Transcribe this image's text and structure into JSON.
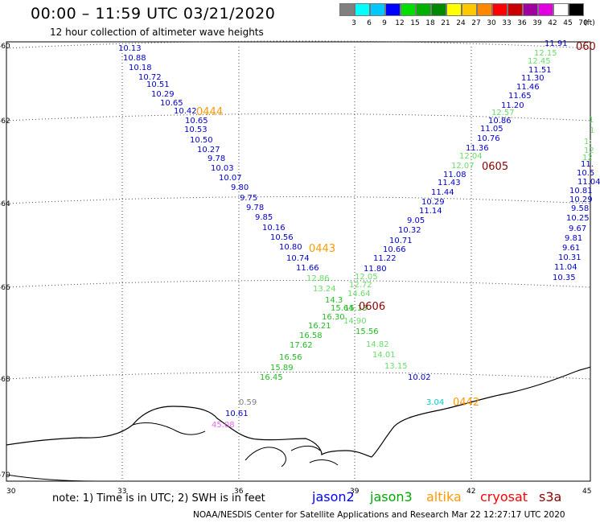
{
  "title": "00:00 – 11:59 UTC 03/21/2020",
  "subtitle": "12 hour collection of altimeter wave heights",
  "scale": {
    "unit_label": "(ft)",
    "colors": [
      "#808080",
      "#00ffff",
      "#00c8ff",
      "#0000ff",
      "#00e000",
      "#00b000",
      "#008800",
      "#ffff00",
      "#ffc800",
      "#ff8800",
      "#ff0000",
      "#c80000",
      "#a000a0",
      "#e000e0",
      "#ffffff",
      "#000000"
    ],
    "labels": [
      "3",
      "6",
      "9",
      "12",
      "15",
      "18",
      "21",
      "24",
      "27",
      "30",
      "33",
      "36",
      "39",
      "42",
      "45",
      "70"
    ]
  },
  "map": {
    "lon_ticks": [
      "30",
      "33",
      "36",
      "39",
      "42",
      "45"
    ],
    "lat_ticks": [
      "-60",
      "-62",
      "-64",
      "-66",
      "-68",
      "-70"
    ]
  },
  "pass_labels": [
    {
      "text": "0444",
      "color": "#ff9900"
    },
    {
      "text": "0443",
      "color": "#ff9900"
    },
    {
      "text": "0442",
      "color": "#ff9900"
    },
    {
      "text": "0605",
      "color": "#8b0000"
    },
    {
      "text": "0606",
      "color": "#8b0000"
    },
    {
      "text": "060",
      "color": "#8b0000"
    }
  ],
  "observations": [
    {
      "v": "10.13",
      "c": "#0000cc"
    },
    {
      "v": "10.88",
      "c": "#0000cc"
    },
    {
      "v": "10.18",
      "c": "#0000cc"
    },
    {
      "v": "10.72",
      "c": "#0000cc"
    },
    {
      "v": "10.51",
      "c": "#0000cc"
    },
    {
      "v": "10.29",
      "c": "#0000cc"
    },
    {
      "v": "10.65",
      "c": "#0000cc"
    },
    {
      "v": "10.42",
      "c": "#0000cc"
    },
    {
      "v": "10.65",
      "c": "#0000cc"
    },
    {
      "v": "10.53",
      "c": "#0000cc"
    },
    {
      "v": "10.50",
      "c": "#0000cc"
    },
    {
      "v": "10.27",
      "c": "#0000cc"
    },
    {
      "v": "9.78",
      "c": "#0000cc"
    },
    {
      "v": "10.03",
      "c": "#0000cc"
    },
    {
      "v": "10.07",
      "c": "#0000cc"
    },
    {
      "v": "9.80",
      "c": "#0000cc"
    },
    {
      "v": "9.75",
      "c": "#0000cc"
    },
    {
      "v": "9.78",
      "c": "#0000cc"
    },
    {
      "v": "9.85",
      "c": "#0000cc"
    },
    {
      "v": "10.16",
      "c": "#0000cc"
    },
    {
      "v": "10.56",
      "c": "#0000cc"
    },
    {
      "v": "10.80",
      "c": "#0000cc"
    },
    {
      "v": "10.74",
      "c": "#0000cc"
    },
    {
      "v": "11.66",
      "c": "#0000cc"
    },
    {
      "v": "12.86",
      "c": "#66dd66"
    },
    {
      "v": "13.24",
      "c": "#66dd66"
    },
    {
      "v": "14.3",
      "c": "#22bb22"
    },
    {
      "v": "15.64",
      "c": "#22bb22"
    },
    {
      "v": "16.30",
      "c": "#22bb22"
    },
    {
      "v": "16.21",
      "c": "#22bb22"
    },
    {
      "v": "16.58",
      "c": "#22bb22"
    },
    {
      "v": "17.62",
      "c": "#22bb22"
    },
    {
      "v": "16.56",
      "c": "#22bb22"
    },
    {
      "v": "15.89",
      "c": "#22bb22"
    },
    {
      "v": "16.45",
      "c": "#22bb22"
    },
    {
      "v": "11.91",
      "c": "#0000cc"
    },
    {
      "v": "12.15",
      "c": "#66dd66"
    },
    {
      "v": "12.45",
      "c": "#66dd66"
    },
    {
      "v": "11.51",
      "c": "#0000cc"
    },
    {
      "v": "11.30",
      "c": "#0000cc"
    },
    {
      "v": "11.46",
      "c": "#0000cc"
    },
    {
      "v": "11.65",
      "c": "#0000cc"
    },
    {
      "v": "11.20",
      "c": "#0000cc"
    },
    {
      "v": "10.86",
      "c": "#0000cc"
    },
    {
      "v": "11.05",
      "c": "#0000cc"
    },
    {
      "v": "10.76",
      "c": "#0000cc"
    },
    {
      "v": "11.36",
      "c": "#0000cc"
    },
    {
      "v": "12.57",
      "c": "#66dd66"
    },
    {
      "v": "12.04",
      "c": "#66dd66"
    },
    {
      "v": "12.07",
      "c": "#66dd66"
    },
    {
      "v": "11.08",
      "c": "#0000cc"
    },
    {
      "v": "11.43",
      "c": "#0000cc"
    },
    {
      "v": "11.44",
      "c": "#0000cc"
    },
    {
      "v": "10.29",
      "c": "#0000cc"
    },
    {
      "v": "11.14",
      "c": "#0000cc"
    },
    {
      "v": "9.05",
      "c": "#0000cc"
    },
    {
      "v": "10.32",
      "c": "#0000cc"
    },
    {
      "v": "10.71",
      "c": "#0000cc"
    },
    {
      "v": "10.66",
      "c": "#0000cc"
    },
    {
      "v": "11.22",
      "c": "#0000cc"
    },
    {
      "v": "11.80",
      "c": "#0000cc"
    },
    {
      "v": "12.05",
      "c": "#66dd66"
    },
    {
      "v": "12.72",
      "c": "#66dd66"
    },
    {
      "v": "14.64",
      "c": "#66dd66"
    },
    {
      "v": "15.13",
      "c": "#22bb22"
    },
    {
      "v": "14.90",
      "c": "#66dd66"
    },
    {
      "v": "15.56",
      "c": "#22bb22"
    },
    {
      "v": "14.82",
      "c": "#66dd66"
    },
    {
      "v": "14.01",
      "c": "#66dd66"
    },
    {
      "v": "13.15",
      "c": "#66dd66"
    },
    {
      "v": "10.02",
      "c": "#0000cc"
    },
    {
      "v": "10.5",
      "c": "#0000cc"
    },
    {
      "v": "11.04",
      "c": "#0000cc"
    },
    {
      "v": "10.81",
      "c": "#0000cc"
    },
    {
      "v": "10.29",
      "c": "#0000cc"
    },
    {
      "v": "9.58",
      "c": "#0000cc"
    },
    {
      "v": "10.25",
      "c": "#0000cc"
    },
    {
      "v": "9.67",
      "c": "#0000cc"
    },
    {
      "v": "9.81",
      "c": "#0000cc"
    },
    {
      "v": "9.61",
      "c": "#0000cc"
    },
    {
      "v": "10.31",
      "c": "#0000cc"
    },
    {
      "v": "11.04",
      "c": "#0000cc"
    },
    {
      "v": "10.35",
      "c": "#0000cc"
    },
    {
      "v": "1",
      "c": "#66dd66"
    },
    {
      "v": "1",
      "c": "#66dd66"
    },
    {
      "v": "1:",
      "c": "#66dd66"
    },
    {
      "v": "12",
      "c": "#66dd66"
    },
    {
      "v": "12",
      "c": "#66dd66"
    },
    {
      "v": "11.",
      "c": "#0000cc"
    },
    {
      "v": "0.59",
      "c": "#808080"
    },
    {
      "v": "10.61",
      "c": "#0000cc"
    },
    {
      "v": "45.08",
      "c": "#ee66ee"
    },
    {
      "v": "3.04",
      "c": "#00cccc"
    }
  ],
  "footnote": "note: 1) Time is in UTC; 2) SWH is in feet",
  "legend": [
    {
      "name": "jason2",
      "color": "#0000ff"
    },
    {
      "name": "jason3",
      "color": "#00aa00"
    },
    {
      "name": "altika",
      "color": "#ff9900"
    },
    {
      "name": "cryosat",
      "color": "#ff0000"
    },
    {
      "name": "s3a",
      "color": "#8b0000"
    }
  ],
  "credit": "NOAA/NESDIS Center for Satellite Applications and Research   Mar 22 12:27:17 UTC 2020"
}
